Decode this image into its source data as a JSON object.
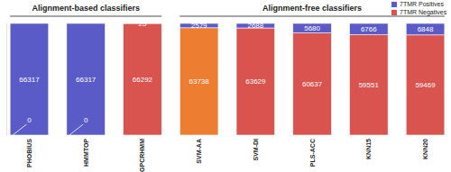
{
  "chart_data": {
    "type": "bar",
    "stacked": true,
    "data_labels": true,
    "tick_labels": "x",
    "categories": [
      "PHOBIUS",
      "HMMTOP",
      "GPCRHMM",
      "SVM-AA",
      "SVM-DI",
      "PLS-ACC",
      "KNN15",
      "KNN20"
    ],
    "series": [
      {
        "name": "7TMR Positives",
        "color": "#5b5bc8",
        "values": [
          66317,
          66317,
          25,
          2579,
          2688,
          5680,
          6766,
          6848
        ]
      },
      {
        "name": "7TMR Negatives",
        "color": "#d9534f",
        "colors": [
          "#d9534f",
          "#d9534f",
          "#d9534f",
          "#ed7d31",
          "#d9534f",
          "#d9534f",
          "#d9534f",
          "#d9534f"
        ],
        "values": [
          0,
          0,
          66292,
          63738,
          63629,
          60637,
          59551,
          59469
        ]
      }
    ],
    "ylim": [
      0,
      66317
    ],
    "yticks": [],
    "legend": "top-right",
    "groups": [
      {
        "label": "Alignment-based classifiers",
        "categories": [
          "PHOBIUS",
          "HMMTOP",
          "GPCRHMM"
        ]
      },
      {
        "label": "Alignment-free classifiers",
        "categories": [
          "SVM-AA",
          "SVM-DI",
          "PLS-ACC",
          "KNN15",
          "KNN20"
        ]
      }
    ]
  }
}
